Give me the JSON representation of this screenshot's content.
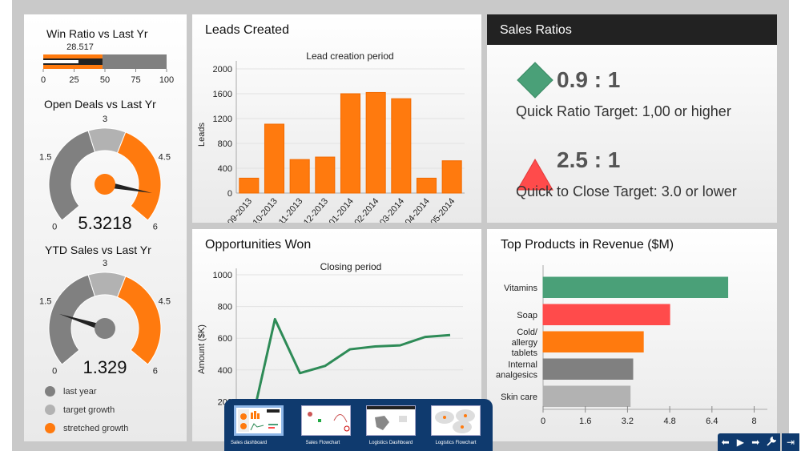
{
  "colors": {
    "orange": "#ff7a0e",
    "gray_dark": "#808080",
    "gray_light": "#b2b2b2",
    "green": "#4aa078",
    "red": "#ff4b4b",
    "navy": "#0f3a6e",
    "line_green": "#2e8b57"
  },
  "win_ratio": {
    "title": "Win Ratio vs Last Yr",
    "value_label": "28.517",
    "value": 28.517,
    "ticks": [
      "0",
      "25",
      "50",
      "75",
      "100"
    ],
    "range": [
      0,
      100
    ],
    "bands": [
      {
        "to": 48,
        "color": "orange"
      },
      {
        "to": 100,
        "color": "gray_dark"
      }
    ],
    "target": 48
  },
  "open_deals": {
    "title": "Open Deals vs Last Yr",
    "value_label": "5.3218",
    "value": 5.3218,
    "ticks": [
      "0",
      "1.5",
      "3",
      "4.5",
      "6"
    ],
    "range": [
      0,
      6
    ]
  },
  "ytd_sales": {
    "title": "YTD Sales vs Last Yr",
    "value_label": "1.329",
    "value": 1.329,
    "ticks": [
      "0",
      "1.5",
      "3",
      "4.5",
      "6"
    ],
    "range": [
      0,
      6
    ]
  },
  "gauge_legend": [
    {
      "label": "last year",
      "color": "#808080"
    },
    {
      "label": "target growth",
      "color": "#b2b2b2"
    },
    {
      "label": "stretched growth",
      "color": "#ff7a0e"
    }
  ],
  "leads": {
    "panel_title": "Leads Created",
    "chart_data": {
      "type": "bar",
      "title": "Lead creation period",
      "xlabel": "",
      "ylabel": "Leads",
      "ylim": [
        0,
        2000
      ],
      "yticks": [
        "0",
        "400",
        "800",
        "1200",
        "1600",
        "2000"
      ],
      "categories": [
        "09-2013",
        "10-2013",
        "11-2013",
        "12-2013",
        "01-2014",
        "02-2014",
        "03-2014",
        "04-2014",
        "05-2014"
      ],
      "values": [
        240,
        1110,
        540,
        580,
        1600,
        1620,
        1520,
        240,
        520
      ],
      "grid": true
    }
  },
  "ratios": {
    "header": "Sales Ratios",
    "items": [
      {
        "icon": "diamond-icon",
        "value": "0.9 : 1",
        "label": "Quick Ratio Target: 1,00 or higher"
      },
      {
        "icon": "triangle-icon",
        "value": "2.5 : 1",
        "label": "Quick to Close Target: 3.0 or lower"
      }
    ]
  },
  "opportunities": {
    "panel_title": "Opportunities Won",
    "chart_data": {
      "type": "line",
      "title": "Closing period",
      "ylabel": "Amount ($K)",
      "ylim": [
        0,
        1000
      ],
      "yticks": [
        "200",
        "400",
        "600",
        "800",
        "1000"
      ],
      "values": [
        20,
        720,
        380,
        425,
        530,
        548,
        555,
        608,
        620
      ],
      "grid": true
    }
  },
  "products": {
    "panel_title": "Top Products in Revenue ($M)",
    "chart_data": {
      "type": "bar",
      "orientation": "horizontal",
      "categories": [
        "Vitamins",
        "Soap",
        "Cold/ allergy tablets",
        "Internal analgesics",
        "Skin care"
      ],
      "category_lines": [
        [
          "Vitamins"
        ],
        [
          "Soap"
        ],
        [
          "Cold/",
          "allergy",
          "tablets"
        ],
        [
          "Internal",
          "analgesics"
        ],
        [
          "Skin care"
        ]
      ],
      "values": [
        7.0,
        4.8,
        3.8,
        3.4,
        3.3
      ],
      "bar_colors": [
        "#4aa078",
        "#ff4b4b",
        "#ff7a0e",
        "#808080",
        "#b2b2b2"
      ],
      "xlim": [
        0,
        8.5
      ],
      "xticks": [
        "0",
        "1.6",
        "3.2",
        "4.8",
        "6.4",
        "8"
      ]
    }
  },
  "switcher": {
    "items": [
      {
        "label": "Sales dashboard",
        "active": true
      },
      {
        "label": "Sales Flowchart",
        "active": false
      },
      {
        "label": "Logistics Dashboard",
        "active": false
      },
      {
        "label": "Logistics Flowchart",
        "active": false
      }
    ]
  },
  "nav": {
    "prev": "⬅",
    "play": "▶",
    "next": "➡",
    "settings": "🔧",
    "exit": "⇥"
  }
}
